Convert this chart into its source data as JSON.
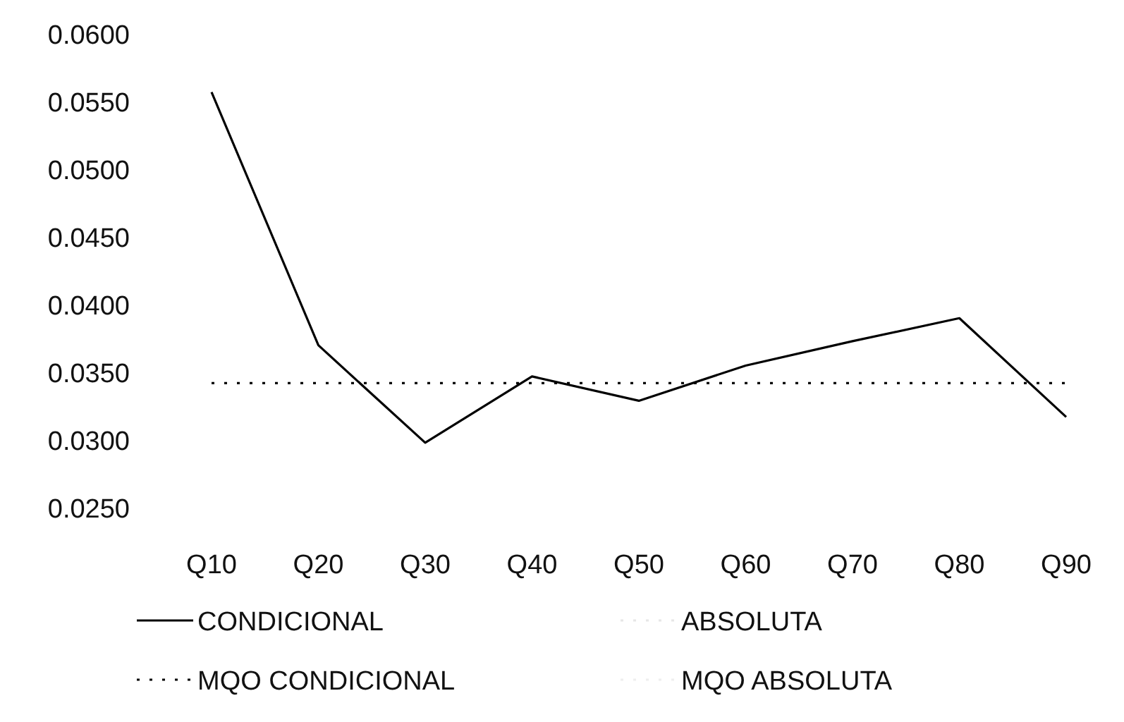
{
  "chart_data": {
    "type": "line",
    "categories": [
      "Q10",
      "Q20",
      "Q30",
      "Q40",
      "Q50",
      "Q60",
      "Q70",
      "Q80",
      "Q90"
    ],
    "series": [
      {
        "name": "CONDICIONAL",
        "color": "#000000",
        "line_style": "solid",
        "values": [
          0.0558,
          0.0371,
          0.0299,
          0.0348,
          0.033,
          0.0356,
          0.0374,
          0.0391,
          0.0318
        ]
      },
      {
        "name": "ABSOLUTA",
        "color": "#e6e6e6",
        "line_style": "dotted",
        "values": [
          null,
          null,
          null,
          null,
          null,
          null,
          null,
          null,
          null
        ]
      },
      {
        "name": "MQO CONDICIONAL",
        "color": "#000000",
        "line_style": "dotted",
        "values": [
          0.0343,
          0.0343,
          0.0343,
          0.0343,
          0.0343,
          0.0343,
          0.0343,
          0.0343,
          0.0343
        ]
      },
      {
        "name": "MQO ABSOLUTA",
        "color": "#eeeeee",
        "line_style": "dotted",
        "values": [
          null,
          null,
          null,
          null,
          null,
          null,
          null,
          null,
          null
        ]
      }
    ],
    "ylim": [
      0.025,
      0.06
    ],
    "yticks": [
      {
        "value": 0.025,
        "label": "0.0250"
      },
      {
        "value": 0.03,
        "label": "0.0300"
      },
      {
        "value": 0.035,
        "label": "0.0350"
      },
      {
        "value": 0.04,
        "label": "0.0400"
      },
      {
        "value": 0.045,
        "label": "0.0450"
      },
      {
        "value": 0.05,
        "label": "0.0500"
      },
      {
        "value": 0.055,
        "label": "0.0550"
      },
      {
        "value": 0.06,
        "label": "0.0600"
      }
    ],
    "grid": false,
    "legend": "bottom",
    "marker": "none"
  }
}
